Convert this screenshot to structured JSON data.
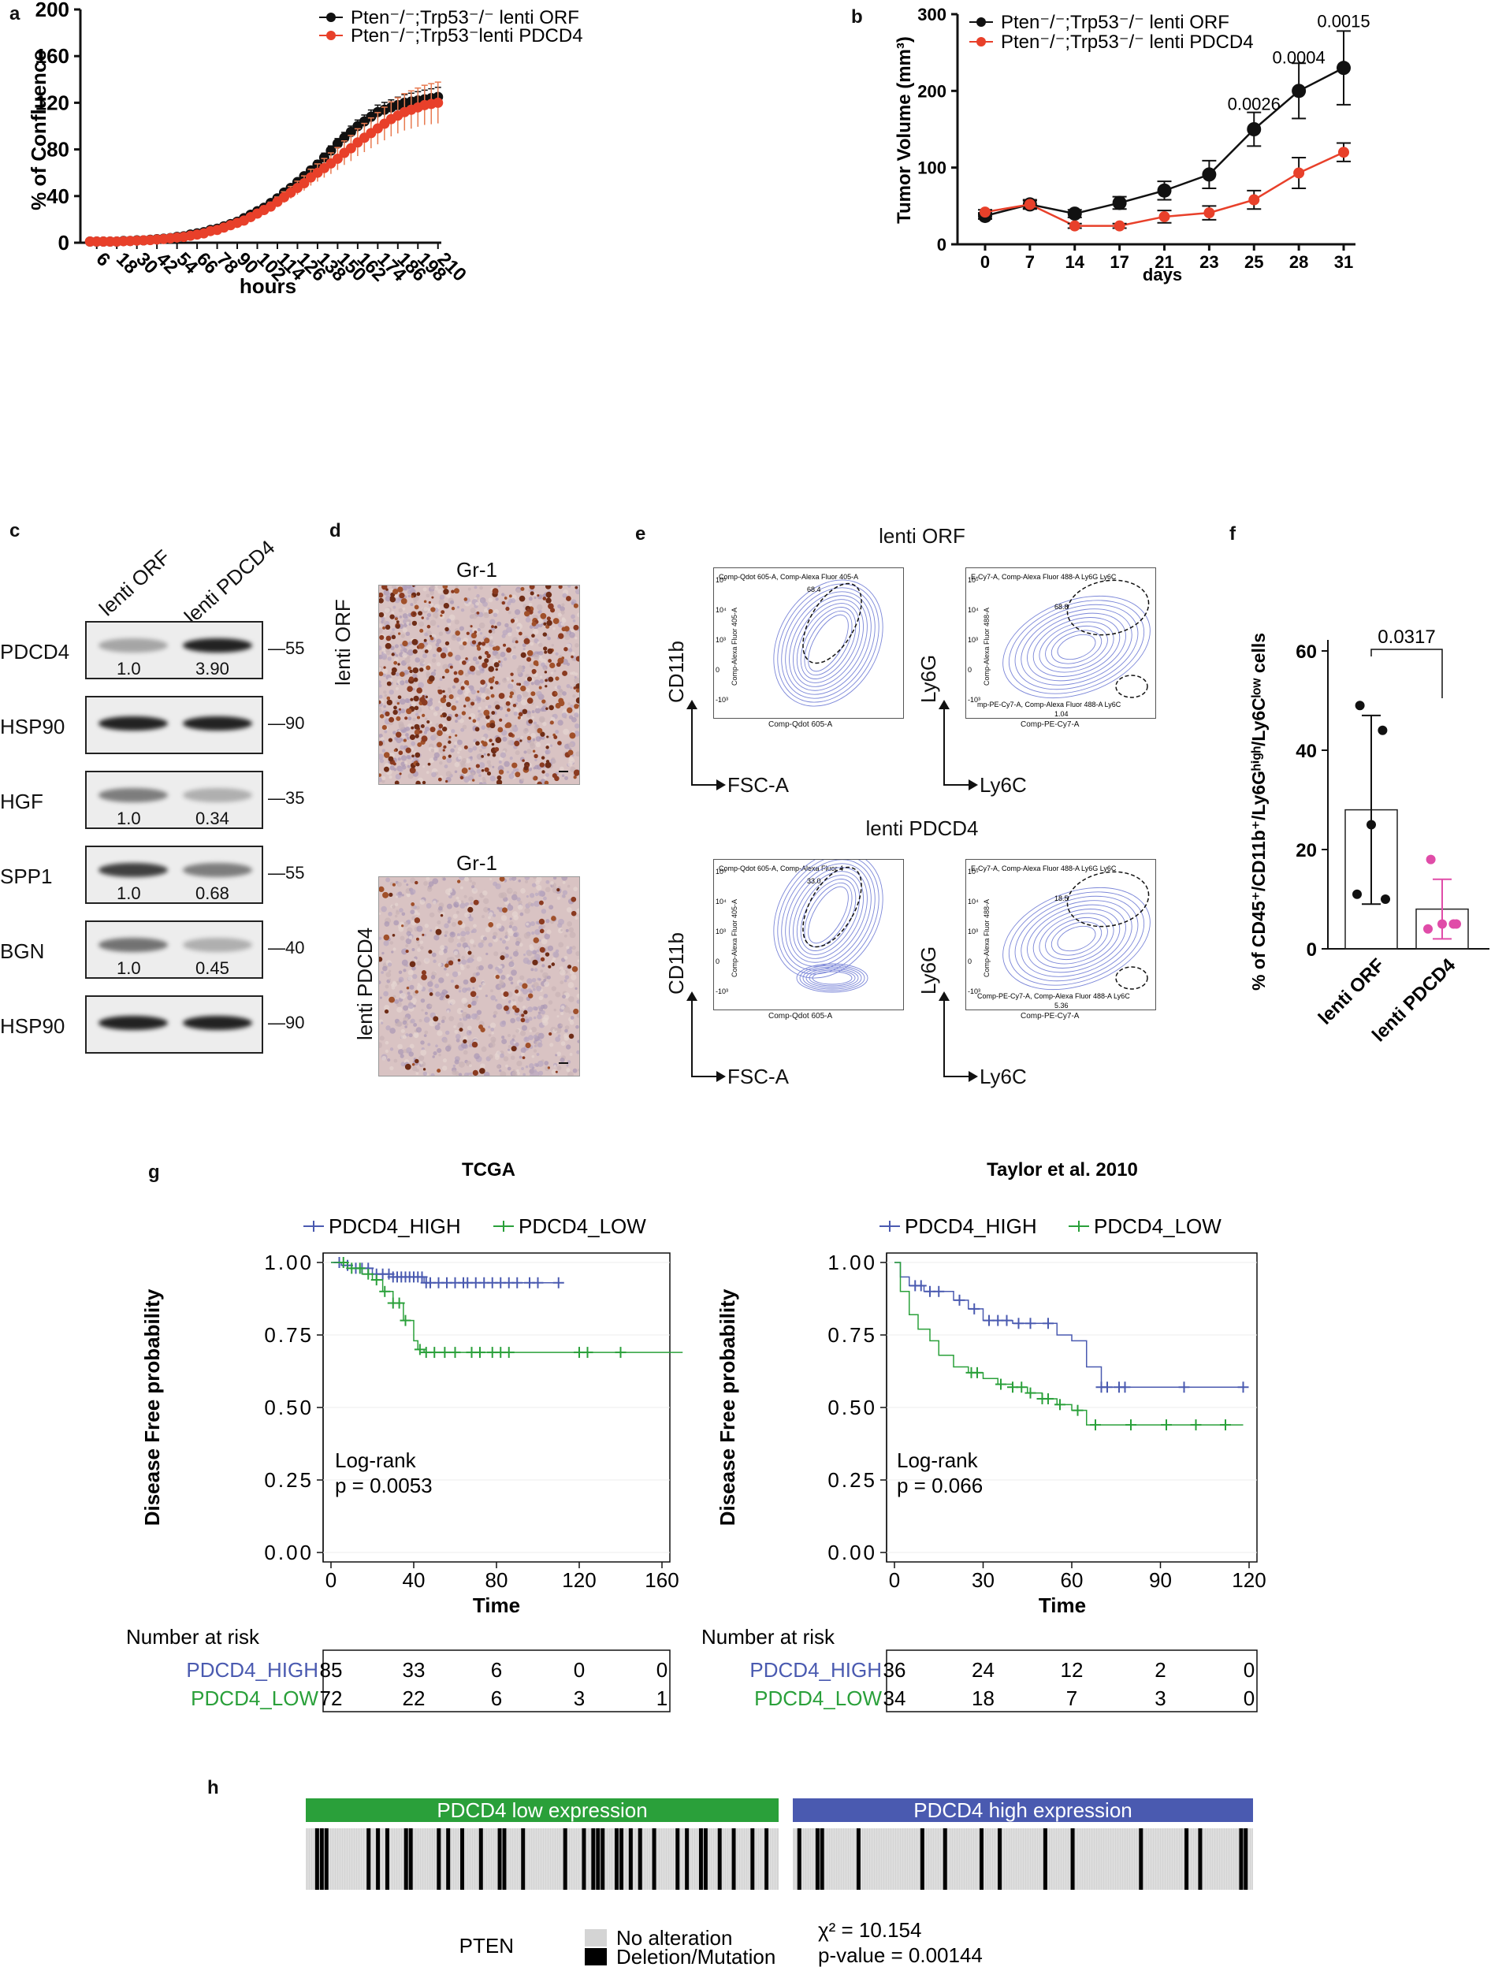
{
  "panels": {
    "a": "a",
    "b": "b",
    "c": "c",
    "d": "d",
    "e": "e",
    "f": "f",
    "g": "g",
    "h": "h"
  },
  "colors": {
    "black": "#111111",
    "red": "#e8402a",
    "orange": "#e87a50",
    "blue": "#4a5ab0",
    "green": "#2aa03a",
    "pink": "#e04ca8",
    "flow": "#7b86d8"
  },
  "chart_data": [
    {
      "id": "a",
      "type": "line",
      "ylabel": "% of Confluence",
      "xlabel": "hours",
      "ylim": [
        0,
        200
      ],
      "yticks": [
        "0",
        "40",
        "80",
        "120",
        "160",
        "200"
      ],
      "xticks": [
        "6",
        "18",
        "30",
        "42",
        "54",
        "66",
        "78",
        "90",
        "102",
        "114",
        "126",
        "138",
        "150",
        "162",
        "174",
        "186",
        "198",
        "210"
      ],
      "legend": [
        "Pten⁻/⁻;Trp53⁻/⁻ lenti ORF",
        "Pten⁻/⁻;Trp53⁻lenti PDCD4"
      ],
      "x": [
        2,
        6,
        10,
        14,
        18,
        22,
        26,
        30,
        34,
        38,
        42,
        46,
        50,
        54,
        58,
        62,
        66,
        70,
        74,
        78,
        82,
        86,
        90,
        94,
        98,
        102,
        106,
        110,
        114,
        118,
        122,
        126,
        130,
        134,
        138,
        142,
        146,
        150,
        154,
        158,
        162,
        166,
        170,
        174,
        178,
        182,
        186,
        190,
        194,
        198,
        202,
        206,
        210
      ],
      "series": [
        {
          "name": "lenti ORF",
          "values": [
            1,
            1,
            1,
            1,
            1,
            1.5,
            1.5,
            2,
            2,
            2.5,
            3,
            3.5,
            4,
            5,
            5.5,
            7,
            8,
            9,
            11,
            12,
            14,
            16,
            18,
            21,
            24,
            27,
            30,
            34,
            38,
            43,
            47,
            52,
            57,
            62,
            67,
            73,
            79,
            85,
            90,
            95,
            100,
            104,
            108,
            112,
            114,
            116,
            118,
            120,
            121,
            122,
            123,
            124,
            125
          ],
          "err": [
            0.3,
            0.3,
            0.3,
            0.3,
            0.3,
            0.3,
            0.3,
            0.3,
            0.3,
            0.3,
            0.4,
            0.4,
            0.5,
            0.5,
            0.6,
            0.6,
            0.7,
            0.7,
            0.8,
            0.9,
            1,
            1,
            1.2,
            1.3,
            1.4,
            1.5,
            1.7,
            1.8,
            2,
            2.2,
            2.5,
            2.8,
            3,
            3.3,
            3.5,
            3.8,
            4,
            4.3,
            4.6,
            5,
            5.2,
            5.5,
            5.8,
            6,
            6.3,
            6.5,
            6.8,
            7,
            7.2,
            7.5,
            7.8,
            8,
            8.2
          ]
        },
        {
          "name": "lenti PDCD4",
          "values": [
            1,
            1,
            1,
            1,
            1,
            1.3,
            1.5,
            1.8,
            2,
            2.3,
            2.8,
            3.2,
            3.8,
            4.5,
            5,
            6,
            7,
            8,
            10,
            11,
            13,
            15,
            17,
            19,
            22,
            25,
            28,
            31,
            35,
            39,
            43,
            47,
            51,
            56,
            60,
            64,
            68,
            72,
            77,
            81,
            86,
            90,
            94,
            98,
            102,
            106,
            109,
            112,
            114,
            116,
            118,
            119,
            120
          ],
          "err": [
            0.3,
            0.3,
            0.3,
            0.3,
            0.3,
            0.3,
            0.3,
            0.3,
            0.3,
            0.4,
            0.4,
            0.5,
            0.5,
            0.6,
            0.7,
            0.8,
            0.9,
            1,
            1.1,
            1.3,
            1.5,
            1.7,
            2,
            2.3,
            2.6,
            3,
            3.4,
            3.8,
            4.2,
            4.7,
            5.2,
            5.8,
            6.3,
            7,
            7.6,
            8.2,
            9,
            9.6,
            10.3,
            11,
            11.7,
            12.3,
            13,
            13.6,
            14.2,
            14.8,
            15.3,
            15.8,
            16.2,
            16.6,
            17,
            17.4,
            17.7
          ]
        }
      ]
    },
    {
      "id": "b",
      "type": "line",
      "ylabel": "Tumor Volume (mm³)",
      "xlabel": "days",
      "ylim": [
        0,
        300
      ],
      "yticks": [
        "0",
        "100",
        "200",
        "300"
      ],
      "categories": [
        "0",
        "7",
        "14",
        "17",
        "21",
        "23",
        "25",
        "28",
        "31"
      ],
      "legend": [
        "Pten⁻/⁻;Trp53⁻/⁻ lenti ORF",
        "Pten⁻/⁻;Trp53⁻/⁻ lenti PDCD4"
      ],
      "series": [
        {
          "name": "lenti ORF",
          "values": [
            37,
            52,
            40,
            54,
            70,
            91,
            150,
            200,
            230
          ],
          "err": [
            4,
            6,
            5,
            8,
            12,
            18,
            22,
            36,
            48
          ]
        },
        {
          "name": "lenti PDCD4",
          "values": [
            42,
            52,
            24,
            24,
            36,
            41,
            58,
            93,
            120
          ],
          "err": [
            3,
            5,
            3,
            3,
            8,
            9,
            12,
            20,
            12
          ]
        }
      ],
      "annotations": [
        {
          "x": "25",
          "y": 175,
          "text": "0.0026"
        },
        {
          "x": "28",
          "y": 236,
          "text": "0.0004"
        },
        {
          "x": "31",
          "y": 283,
          "text": "0.0015"
        }
      ]
    },
    {
      "id": "f",
      "type": "bar",
      "ylabel": "% of CD45⁺/CD11b⁺/Ly6Gʰⁱᵍʰ/Ly6Cˡᵒʷ cells",
      "categories": [
        "lenti ORF",
        "lenti PDCD4"
      ],
      "values": [
        28,
        8
      ],
      "err": [
        19,
        6
      ],
      "ylim": [
        0,
        60
      ],
      "yticks": [
        "0",
        "20",
        "40",
        "60"
      ],
      "points": [
        [
          49,
          44,
          11,
          10,
          25
        ],
        [
          18,
          5,
          4,
          5,
          5
        ]
      ],
      "pvalue": "0.0317"
    },
    {
      "id": "g1",
      "type": "line",
      "title": "TCGA",
      "ylabel": "Disease Free probability",
      "xlabel": "Time",
      "xticks": [
        "0",
        "40",
        "80",
        "120",
        "160"
      ],
      "xlim": [
        0,
        160
      ],
      "yticks": [
        "0.00",
        "0.25",
        "0.50",
        "0.75",
        "1.00"
      ],
      "ylim": [
        0,
        1
      ],
      "legend": [
        "PDCD4_HIGH",
        "PDCD4_LOW"
      ],
      "stat_line1": "Log-rank",
      "stat_line2": "p = 0.0053",
      "series": [
        {
          "name": "PDCD4_HIGH",
          "x": [
            0,
            5,
            10,
            20,
            30,
            45,
            110
          ],
          "values": [
            1,
            0.99,
            0.98,
            0.96,
            0.95,
            0.93,
            0.93
          ],
          "censor": [
            4,
            8,
            12,
            15,
            18,
            22,
            25,
            28,
            30,
            32,
            34,
            36,
            38,
            40,
            42,
            44,
            46,
            48,
            52,
            56,
            60,
            64,
            66,
            70,
            74,
            78,
            82,
            86,
            90,
            96,
            100,
            110
          ]
        },
        {
          "name": "PDCD4_LOW",
          "x": [
            0,
            8,
            15,
            20,
            25,
            30,
            35,
            40,
            42,
            45,
            170
          ],
          "values": [
            1,
            0.98,
            0.96,
            0.94,
            0.9,
            0.86,
            0.8,
            0.73,
            0.7,
            0.69,
            0.69
          ],
          "censor": [
            6,
            10,
            14,
            18,
            22,
            26,
            30,
            33,
            36,
            43,
            46,
            50,
            55,
            60,
            68,
            72,
            78,
            82,
            86,
            120,
            124,
            140
          ]
        }
      ],
      "risk_title": "Number at risk",
      "risk": [
        {
          "label": "PDCD4_HIGH",
          "values": [
            "85",
            "33",
            "6",
            "0",
            "0"
          ]
        },
        {
          "label": "PDCD4_LOW",
          "values": [
            "72",
            "22",
            "6",
            "3",
            "1"
          ]
        }
      ]
    },
    {
      "id": "g2",
      "type": "line",
      "title": "Taylor et al. 2010",
      "ylabel": "Disease Free probability",
      "xlabel": "Time",
      "xticks": [
        "0",
        "30",
        "60",
        "90",
        "120"
      ],
      "xlim": [
        0,
        120
      ],
      "yticks": [
        "0.00",
        "0.25",
        "0.50",
        "0.75",
        "1.00"
      ],
      "ylim": [
        0,
        1
      ],
      "legend": [
        "PDCD4_HIGH",
        "PDCD4_LOW"
      ],
      "stat_line1": "Log-rank",
      "stat_line2": "p = 0.066",
      "series": [
        {
          "name": "PDCD4_HIGH",
          "x": [
            0,
            2,
            5,
            10,
            20,
            25,
            30,
            40,
            55,
            60,
            65,
            70,
            118
          ],
          "values": [
            1,
            0.95,
            0.92,
            0.9,
            0.87,
            0.84,
            0.8,
            0.79,
            0.75,
            0.73,
            0.64,
            0.57,
            0.57
          ],
          "censor": [
            7,
            9,
            12,
            15,
            22,
            27,
            32,
            35,
            38,
            42,
            46,
            52,
            70,
            72,
            76,
            78,
            98,
            118
          ]
        },
        {
          "name": "PDCD4_LOW",
          "x": [
            0,
            2,
            5,
            8,
            12,
            15,
            20,
            25,
            30,
            35,
            40,
            45,
            50,
            55,
            60,
            65,
            118
          ],
          "values": [
            1,
            0.9,
            0.82,
            0.77,
            0.73,
            0.68,
            0.64,
            0.62,
            0.6,
            0.58,
            0.57,
            0.55,
            0.53,
            0.51,
            0.49,
            0.44,
            0.44
          ],
          "censor": [
            26,
            28,
            36,
            40,
            43,
            46,
            50,
            52,
            56,
            62,
            68,
            80,
            92,
            102,
            112
          ]
        }
      ],
      "risk_title": "Number at risk",
      "risk": [
        {
          "label": "PDCD4_HIGH",
          "values": [
            "36",
            "24",
            "12",
            "2",
            "0"
          ]
        },
        {
          "label": "PDCD4_LOW",
          "values": [
            "34",
            "18",
            "7",
            "3",
            "0"
          ]
        }
      ]
    },
    {
      "id": "h",
      "type": "heatmap",
      "groups": [
        "PDCD4 low expression",
        "PDCD4 high expression"
      ],
      "legend": [
        "No alteration",
        "Deletion/Mutation"
      ],
      "row_label": "PTEN",
      "chi": "χ² = 10.154",
      "pvalue": "p-value = 0.00144",
      "low_events": [
        0.02,
        0.03,
        0.04,
        0.13,
        0.15,
        0.17,
        0.21,
        0.22,
        0.28,
        0.3,
        0.33,
        0.37,
        0.41,
        0.42,
        0.46,
        0.55,
        0.59,
        0.61,
        0.62,
        0.63,
        0.66,
        0.67,
        0.69,
        0.71,
        0.74,
        0.79,
        0.81,
        0.84,
        0.85,
        0.88,
        0.91,
        0.95,
        0.98
      ],
      "high_events": [
        0.01,
        0.05,
        0.06,
        0.14,
        0.28,
        0.33,
        0.41,
        0.45,
        0.55,
        0.61,
        0.76,
        0.86,
        0.89,
        0.98,
        0.99
      ]
    }
  ],
  "blot": {
    "lanes": [
      "lenti ORF",
      "lenti PDCD4"
    ],
    "rows": [
      {
        "protein": "PDCD4",
        "mw": "55",
        "q": [
          "1.0",
          "3.90"
        ]
      },
      {
        "protein": "HSP90",
        "mw": "90",
        "q": [
          "",
          ""
        ]
      },
      {
        "protein": "HGF",
        "mw": "35",
        "q": [
          "1.0",
          "0.34"
        ]
      },
      {
        "protein": "SPP1",
        "mw": "55",
        "q": [
          "1.0",
          "0.68"
        ]
      },
      {
        "protein": "BGN",
        "mw": "40",
        "q": [
          "1.0",
          "0.45"
        ]
      },
      {
        "protein": "HSP90",
        "mw": "90",
        "q": [
          "",
          ""
        ]
      }
    ]
  },
  "ihc": {
    "title": "Gr-1",
    "rows": [
      "lenti ORF",
      "lenti PDCD4"
    ]
  },
  "flow": {
    "titles": [
      "lenti ORF",
      "lenti PDCD4"
    ],
    "y_labels": [
      "CD11b",
      "Ly6G"
    ],
    "x_labels": [
      "FSC-A",
      "Ly6C"
    ],
    "plots": [
      {
        "hdr": "Comp-Qdot 605-A, Comp-Alexa Fluor 405-A",
        "gate": "68.4",
        "ax_y": "Comp-Alexa Fluor 405-A",
        "ax_x": "Comp-Qdot 605-A"
      },
      {
        "hdr": "E-Cy7-A, Comp-Alexa Fluor 488-A Ly6G Ly6C",
        "gate": "68.8",
        "gate2_hdr": "mp-PE-Cy7-A, Comp-Alexa Fluor 488-A Ly6C",
        "gate2": "1.04",
        "ax_y": "Comp-Alexa Fluor 488-A",
        "ax_x": "Comp-PE-Cy7-A"
      },
      {
        "hdr": "Comp-Qdot 605-A, Comp-Alexa Fluor 4",
        "gate": "33.0",
        "ax_y": "Comp-Alexa Fluor 405-A",
        "ax_x": "Comp-Qdot 605-A"
      },
      {
        "hdr": "E-Cy7-A, Comp-Alexa Fluor 488-A Ly6G Ly6C",
        "gate": "18.5",
        "gate2_hdr": "Comp-PE-Cy7-A, Comp-Alexa Fluor 488-A Ly6C",
        "gate2": "5.36",
        "ax_y": "Comp-Alexa Fluor 488-A",
        "ax_x": "Comp-PE-Cy7-A"
      }
    ],
    "ticks": [
      "10⁵",
      "10⁴",
      "10³",
      "0",
      "-10³"
    ]
  }
}
